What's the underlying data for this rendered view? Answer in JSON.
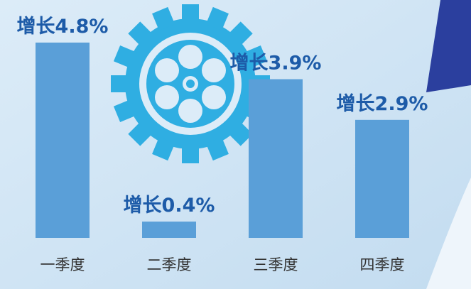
{
  "chart_data": {
    "type": "bar",
    "categories": [
      "一季度",
      "二季度",
      "三季度",
      "四季度"
    ],
    "values": [
      4.8,
      0.4,
      3.9,
      2.9
    ],
    "value_labels": [
      "增长4.8%",
      "增长0.4%",
      "增长3.9%",
      "增长2.9%"
    ],
    "color": "#5a9fd8"
  }
}
